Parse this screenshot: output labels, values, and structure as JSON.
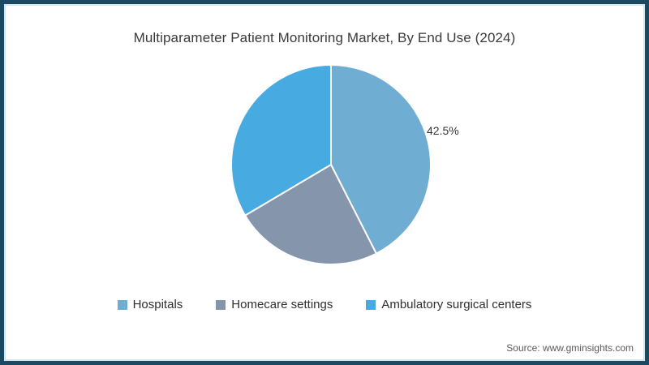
{
  "page": {
    "border_color": "#1b4962",
    "inner_border_color": "#d3e6f1",
    "background": "#ffffff"
  },
  "chart_data": {
    "type": "pie",
    "title": "Multiparameter Patient Monitoring Market, By End Use (2024)",
    "categories": [
      "Hospitals",
      "Homecare settings",
      "Ambulatory surgical centers"
    ],
    "values": [
      42.5,
      24,
      33.5
    ],
    "colors": [
      "#6fadd2",
      "#8595ac",
      "#47abe1"
    ],
    "data_labels": [
      "42.5%",
      "",
      ""
    ],
    "start_angle_deg": 0,
    "direction": "clockwise",
    "slice_border_color": "#ffffff",
    "legend_position": "bottom",
    "grid": false
  },
  "source": {
    "text": "Source: www.gminsights.com"
  }
}
